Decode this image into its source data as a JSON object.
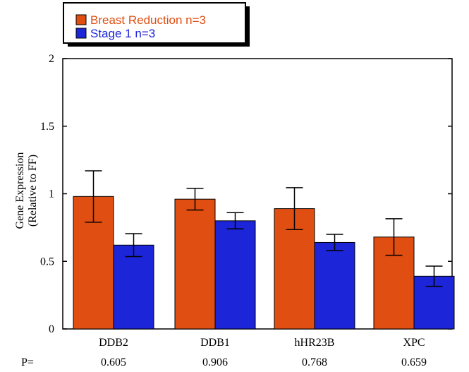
{
  "chart_data": {
    "type": "bar",
    "title": "",
    "xlabel": "",
    "ylabel": "Gene Expression",
    "ylabel_sub": "(Relative to FF)",
    "ylim": [
      0,
      2
    ],
    "yticks": [
      "0",
      "0.5",
      "1",
      "1.5",
      "2"
    ],
    "ytick_values": [
      0,
      0.5,
      1,
      1.5,
      2
    ],
    "grid": false,
    "legend_position": "top-left",
    "categories": [
      "DDB2",
      "DDB1",
      "hHR23B",
      "XPC"
    ],
    "series": [
      {
        "name": "Breast Reduction n=3",
        "color": "#e04e12",
        "label_color": "#e04e12",
        "values": [
          0.98,
          0.96,
          0.89,
          0.68
        ],
        "error": [
          0.19,
          0.08,
          0.155,
          0.135
        ]
      },
      {
        "name": "Stage 1 n=3",
        "color": "#1c25d8",
        "label_color": "#1c25d8",
        "values": [
          0.62,
          0.8,
          0.64,
          0.39
        ],
        "error": [
          0.085,
          0.06,
          0.06,
          0.075
        ]
      }
    ],
    "p_prefix": "P=",
    "p_values": [
      "0.605",
      "0.906",
      "0.768",
      "0.659"
    ]
  }
}
